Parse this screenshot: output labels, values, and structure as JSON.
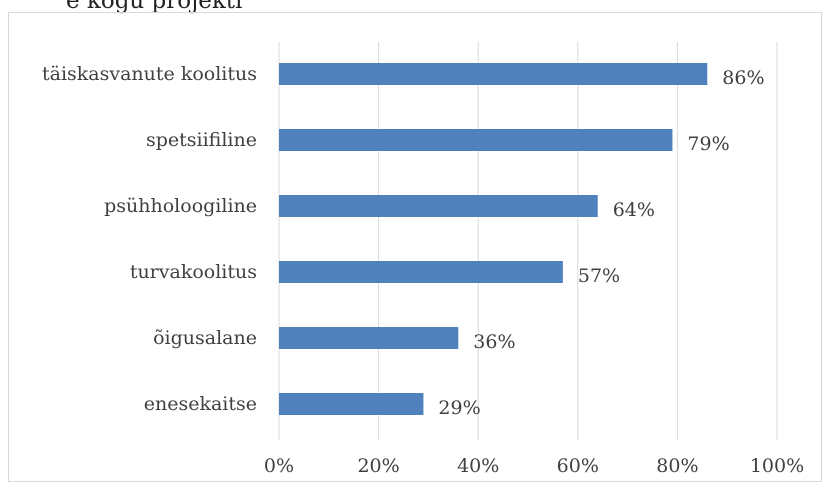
{
  "header_fragment": "e kogu projekti",
  "chart_data": {
    "type": "bar",
    "orientation": "horizontal",
    "categories": [
      "täiskasvanute koolitus",
      "spetsiifiline",
      "psühholoogiline",
      "turvakoolitus",
      "õigusalane",
      "enesekaitse"
    ],
    "values": [
      86,
      79,
      64,
      57,
      36,
      29
    ],
    "value_labels": [
      "86%",
      "79%",
      "64%",
      "57%",
      "36%",
      "29%"
    ],
    "xticks": [
      "0%",
      "20%",
      "40%",
      "60%",
      "80%",
      "100%"
    ],
    "xlim": [
      0,
      100
    ],
    "title": "",
    "xlabel": "",
    "ylabel": "",
    "grid": "vertical",
    "legend": "none",
    "bar_color": "#4f81bd",
    "grid_color": "#d9d9d9"
  }
}
